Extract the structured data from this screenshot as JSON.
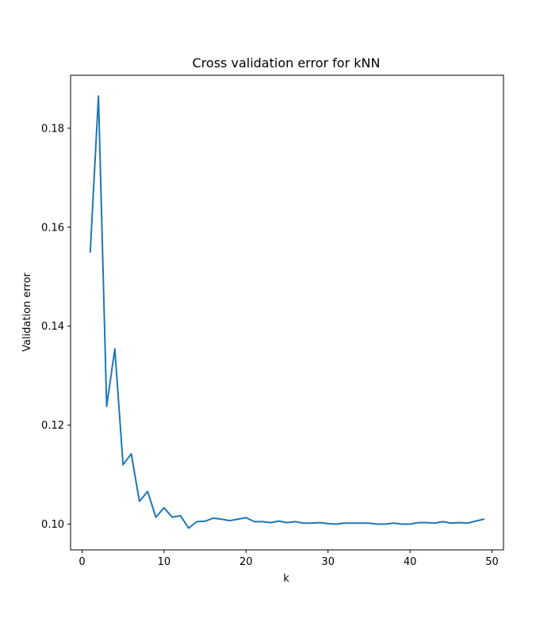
{
  "chart_data": {
    "type": "line",
    "title": "Cross validation error for kNN",
    "xlabel": "k",
    "ylabel": "Validation error",
    "xlim": [
      -1.4,
      51.4
    ],
    "ylim": [
      0.0948,
      0.1907
    ],
    "xticks": [
      0,
      10,
      20,
      30,
      40,
      50
    ],
    "xtick_labels": [
      "0",
      "10",
      "20",
      "30",
      "40",
      "50"
    ],
    "yticks": [
      0.1,
      0.12,
      0.14,
      0.16,
      0.18
    ],
    "ytick_labels": [
      "0.10",
      "0.12",
      "0.14",
      "0.16",
      "0.18"
    ],
    "grid": false,
    "series": [
      {
        "color": "#1f77b4",
        "x": [
          1,
          2,
          3,
          4,
          5,
          6,
          7,
          8,
          9,
          10,
          11,
          12,
          13,
          14,
          15,
          16,
          17,
          18,
          19,
          20,
          21,
          22,
          23,
          24,
          25,
          26,
          27,
          28,
          29,
          30,
          31,
          32,
          33,
          34,
          35,
          36,
          37,
          38,
          39,
          40,
          41,
          42,
          43,
          44,
          45,
          46,
          47,
          48,
          49
        ],
        "y": [
          0.155,
          0.1865,
          0.1238,
          0.1354,
          0.112,
          0.1142,
          0.1046,
          0.1066,
          0.1014,
          0.1033,
          0.1014,
          0.1017,
          0.0992,
          0.1005,
          0.1006,
          0.1012,
          0.101,
          0.1007,
          0.101,
          0.1013,
          0.1005,
          0.1005,
          0.1003,
          0.1006,
          0.1003,
          0.1005,
          0.1002,
          0.1002,
          0.1003,
          0.1001,
          0.1,
          0.1002,
          0.1002,
          0.1002,
          0.1002,
          0.1,
          0.1,
          0.1002,
          0.1,
          0.1,
          0.1003,
          0.1003,
          0.1002,
          0.1005,
          0.1002,
          0.1003,
          0.1002,
          0.1006,
          0.101
        ]
      }
    ]
  }
}
